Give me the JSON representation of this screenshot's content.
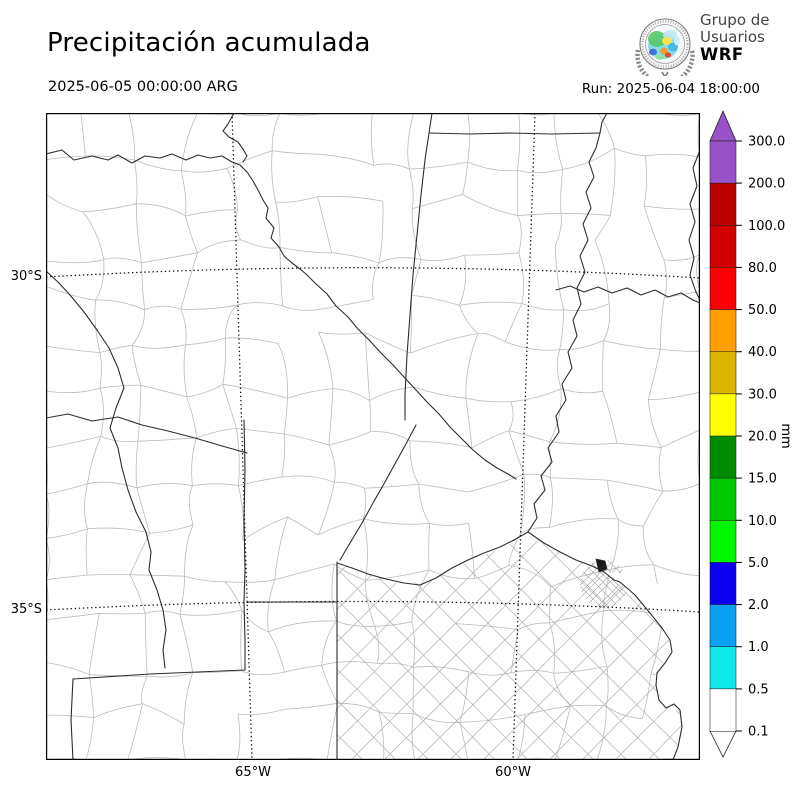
{
  "header": {
    "title": "Precipitación acumulada",
    "valid_time": "2025-06-05 00:00:00 ARG",
    "run_label": "Run: 2025-06-04 18:00:00"
  },
  "logo": {
    "org_line1": "Grupo de",
    "org_line2": "Usuarios",
    "org_line3": "WRF"
  },
  "map": {
    "y_axis_ticks": [
      "30°S",
      "35°S"
    ],
    "x_axis_ticks": [
      "65°W",
      "60°W"
    ]
  },
  "colorbar": {
    "unit": "mm",
    "tick_labels": [
      "300.0",
      "200.0",
      "100.0",
      "80.0",
      "50.0",
      "40.0",
      "30.0",
      "20.0",
      "15.0",
      "10.0",
      "5.0",
      "2.0",
      "1.0",
      "0.5",
      "0.1"
    ],
    "segment_colors_top_to_bottom": [
      "#9752C8",
      "#B80000",
      "#D00000",
      "#FA0000",
      "#FF9E00",
      "#D9B500",
      "#FFFF00",
      "#008C00",
      "#00C800",
      "#00F700",
      "#0B00F0",
      "#09A1F0",
      "#0FE8E8",
      "#FFFFFF"
    ],
    "over_arrow_color": "#9752C8",
    "under_arrow_color": "#FFFFFF"
  }
}
